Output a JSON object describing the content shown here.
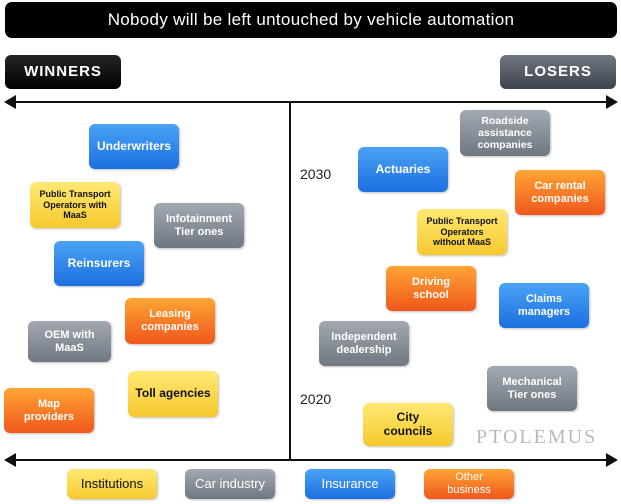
{
  "title": "Nobody will be left untouched by vehicle automation",
  "winners_label": "WINNERS",
  "losers_label": "LOSERS",
  "years": {
    "y2030": "2030",
    "y2020": "2020"
  },
  "winners": {
    "underwriters": "Underwriters",
    "public_transport_maas": "Public Transport Operators with MaaS",
    "infotainment": "Infotainment Tier ones",
    "reinsurers": "Reinsurers",
    "leasing": "Leasing companies",
    "oem_maas": "OEM with MaaS",
    "toll": "Toll agencies",
    "map": "Map providers"
  },
  "losers": {
    "roadside": "Roadside assistance companies",
    "actuaries": "Actuaries",
    "car_rental": "Car rental companies",
    "public_transport_no_maas": "Public Transport Operators without MaaS",
    "driving_school": "Driving school",
    "claims": "Claims managers",
    "dealership": "Independent dealership",
    "mechanical": "Mechanical Tier ones",
    "city": "City councils"
  },
  "legend": {
    "institutions": "Institutions",
    "car_industry": "Car industry",
    "insurance": "Insurance",
    "other": "Other business"
  },
  "watermark": "PTOLEMUS",
  "colors": {
    "insurance": "#2a85ee",
    "car_industry": "#858c94",
    "institutions": "#f9d84a",
    "other_business": "#f7772a"
  }
}
